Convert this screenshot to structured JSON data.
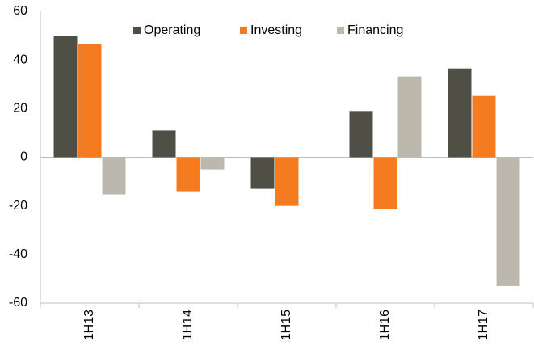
{
  "chart_data": {
    "type": "bar",
    "categories": [
      "1H13",
      "1H14",
      "1H15",
      "1H16",
      "1H17"
    ],
    "series": [
      {
        "name": "Operating",
        "color": "#4f4f45",
        "values": [
          50,
          11,
          -13,
          19,
          36.5
        ]
      },
      {
        "name": "Investing",
        "color": "#f47b20",
        "values": [
          46.5,
          -14,
          -20,
          -21.3,
          25.2
        ]
      },
      {
        "name": "Financing",
        "color": "#bcb8ae",
        "values": [
          -15.3,
          -5,
          null,
          33.2,
          -53
        ]
      }
    ],
    "ylim": [
      -60,
      60
    ],
    "yticks": [
      -60,
      -40,
      -20,
      0,
      20,
      40,
      60
    ],
    "grid": false,
    "legend": "top"
  }
}
